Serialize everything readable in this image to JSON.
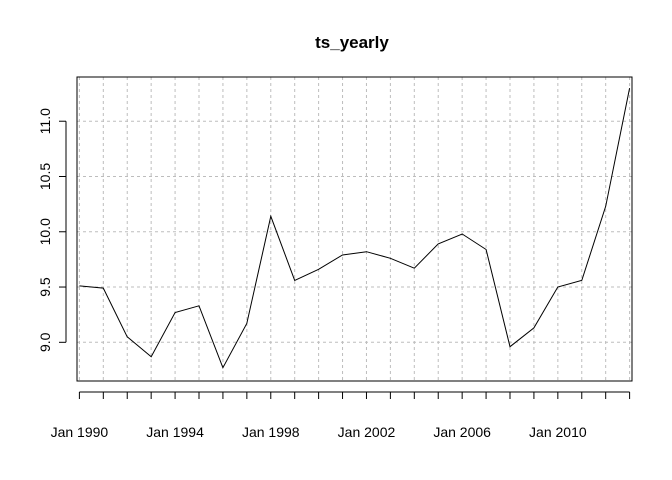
{
  "chart_data": {
    "type": "line",
    "title": "ts_yearly",
    "xlabel": "",
    "ylabel": "",
    "x": [
      1990,
      1991,
      1992,
      1993,
      1994,
      1995,
      1996,
      1997,
      1998,
      1999,
      2000,
      2001,
      2002,
      2003,
      2004,
      2005,
      2006,
      2007,
      2008,
      2009,
      2010,
      2011,
      2012,
      2013
    ],
    "series": [
      {
        "values": [
          9.51,
          9.49,
          9.05,
          8.87,
          9.27,
          9.33,
          8.77,
          9.17,
          10.14,
          9.56,
          9.66,
          9.79,
          9.82,
          9.76,
          9.67,
          9.89,
          9.98,
          9.84,
          8.96,
          9.13,
          9.5,
          9.56,
          10.23,
          11.3
        ]
      }
    ],
    "xlim": [
      1989.9,
      2013.1
    ],
    "ylim": [
      8.65,
      11.4
    ],
    "x_ticks": [
      1990,
      1991,
      1992,
      1993,
      1994,
      1995,
      1996,
      1997,
      1998,
      1999,
      2000,
      2001,
      2002,
      2003,
      2004,
      2005,
      2006,
      2007,
      2008,
      2009,
      2010,
      2011,
      2012,
      2013
    ],
    "x_tick_labels": [
      {
        "x": 1990,
        "label": "Jan 1990"
      },
      {
        "x": 1994,
        "label": "Jan 1994"
      },
      {
        "x": 1998,
        "label": "Jan 1998"
      },
      {
        "x": 2002,
        "label": "Jan 2002"
      },
      {
        "x": 2006,
        "label": "Jan 2006"
      },
      {
        "x": 2010,
        "label": "Jan 2010"
      }
    ],
    "y_ticks": [
      9.0,
      9.5,
      10.0,
      10.5,
      11.0
    ],
    "y_tick_labels": [
      "9.0",
      "9.5",
      "10.0",
      "10.5",
      "11.0"
    ],
    "grid": true,
    "line_color": "#000000",
    "grid_color": "#bdbdbd"
  }
}
